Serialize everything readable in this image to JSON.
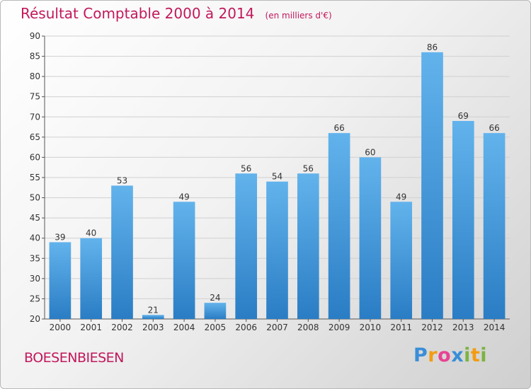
{
  "header": {
    "title": "Résultat Comptable 2000 à 2014",
    "unit": "(en milliers d'€)"
  },
  "footer": {
    "commune": "BOESENBIESEN",
    "logo_letters": [
      "P",
      "r",
      "o",
      "x",
      "i",
      "t",
      "i"
    ]
  },
  "colors": {
    "bar_top": "#62b3ec",
    "bar_bottom": "#2a7dc4",
    "title": "#c2185b",
    "grid": "#d0d0d0"
  },
  "chart_data": {
    "type": "bar",
    "title": "Résultat Comptable 2000 à 2014",
    "subtitle": "(en milliers d'€)",
    "xlabel": "",
    "ylabel": "",
    "categories": [
      "2000",
      "2001",
      "2002",
      "2003",
      "2004",
      "2005",
      "2006",
      "2007",
      "2008",
      "2009",
      "2010",
      "2011",
      "2012",
      "2013",
      "2014"
    ],
    "values": [
      39,
      40,
      53,
      21,
      49,
      24,
      56,
      54,
      56,
      66,
      60,
      49,
      86,
      69,
      66
    ],
    "ylim": [
      20,
      90
    ],
    "yticks": [
      20,
      25,
      30,
      35,
      40,
      45,
      50,
      55,
      60,
      65,
      70,
      75,
      80,
      85,
      90
    ],
    "grid": true,
    "legend": "none"
  }
}
